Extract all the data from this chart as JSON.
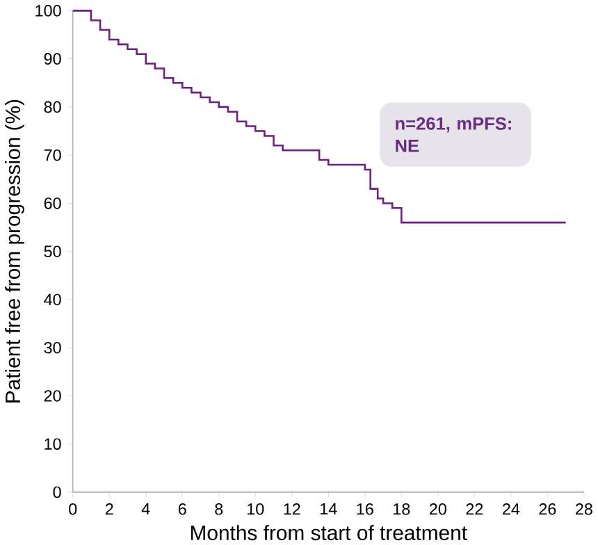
{
  "chart_data": {
    "type": "step",
    "xlabel": "Months from start of treatment",
    "ylabel": "Patient free from progression (%)",
    "x": [
      0,
      1,
      1.5,
      2,
      2.5,
      3,
      3.5,
      4,
      4.5,
      5,
      5.5,
      6,
      6.5,
      7,
      7.5,
      8,
      8.5,
      9,
      9.5,
      10,
      10.5,
      11,
      11.5,
      12,
      13,
      13.5,
      14,
      15,
      16,
      16.3,
      16.7,
      17,
      17.5,
      18,
      27
    ],
    "series": [
      {
        "color": "#6b1f7f",
        "values": [
          100,
          98,
          96,
          94,
          93,
          92,
          91,
          89,
          88,
          86,
          85,
          84,
          83,
          82,
          81,
          80,
          79,
          77,
          76,
          75,
          74,
          72,
          71,
          71,
          71,
          69,
          68,
          68,
          67,
          63,
          61,
          60,
          59,
          56,
          56
        ]
      }
    ],
    "xlim": [
      0,
      28
    ],
    "ylim": [
      0,
      100
    ],
    "xticks": [
      0,
      2,
      4,
      6,
      8,
      10,
      12,
      14,
      16,
      18,
      20,
      22,
      24,
      26,
      28
    ],
    "yticks": [
      0,
      10,
      20,
      30,
      40,
      50,
      60,
      70,
      80,
      90,
      100
    ],
    "annotations": [
      "n=261, mPFS: NE"
    ],
    "grid": false
  }
}
